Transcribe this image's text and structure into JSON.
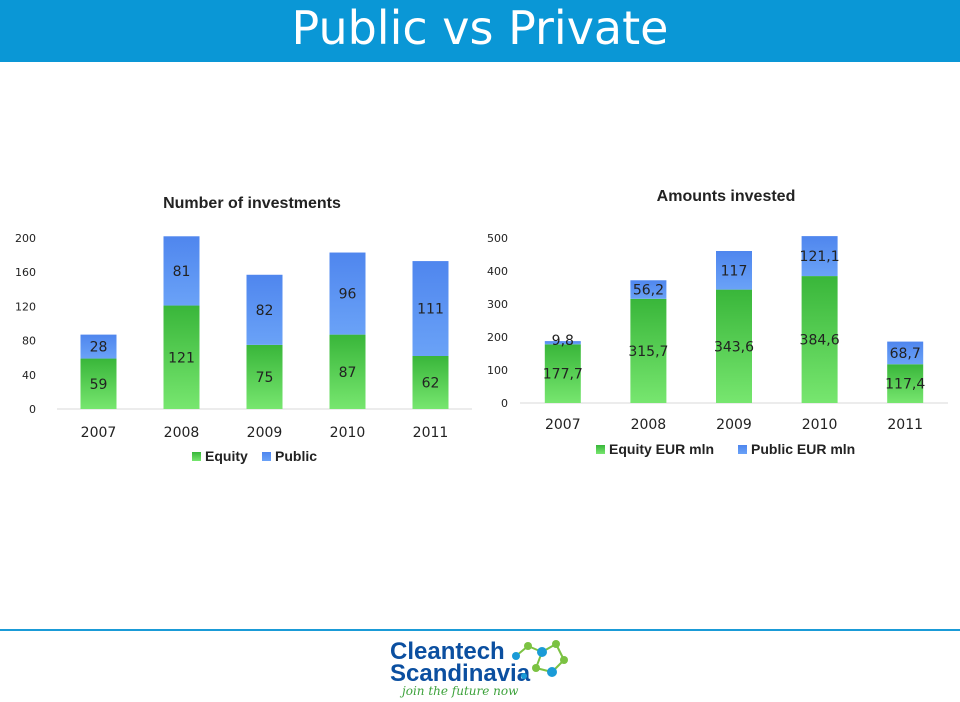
{
  "slide": {
    "title": "Public vs Private"
  },
  "colors": {
    "header": "#0a97d6",
    "equity": "#4fd04c",
    "public": "#5b92f2"
  },
  "chart_data": [
    {
      "type": "bar",
      "stacked": true,
      "title": "Number of investments",
      "categories": [
        "2007",
        "2008",
        "2009",
        "2010",
        "2011"
      ],
      "series": [
        {
          "name": "Equity",
          "values": [
            59,
            121,
            75,
            87,
            62
          ]
        },
        {
          "name": "Public",
          "values": [
            28,
            81,
            82,
            96,
            111
          ]
        }
      ],
      "y_ticks": [
        "0",
        "40",
        "80",
        "120",
        "160",
        "200"
      ],
      "ylim": [
        0,
        200
      ],
      "grid": false,
      "legend": "bottom"
    },
    {
      "type": "bar",
      "stacked": true,
      "title": "Amounts invested",
      "categories": [
        "2007",
        "2008",
        "2009",
        "2010",
        "2011"
      ],
      "series": [
        {
          "name": "Equity EUR mln",
          "values": [
            177.7,
            315.7,
            343.6,
            384.6,
            117.4
          ],
          "labels": [
            "177,7",
            "315,7",
            "343,6",
            "384,6",
            "117,4"
          ]
        },
        {
          "name": "Public  EUR mln",
          "values": [
            9.8,
            56.2,
            117,
            121.1,
            68.7
          ],
          "labels": [
            "9,8",
            "56,2",
            "117",
            "121,1",
            "68,7"
          ]
        }
      ],
      "y_ticks": [
        "0",
        "100",
        "200",
        "300",
        "400",
        "500"
      ],
      "ylim": [
        0,
        500
      ],
      "grid": false,
      "legend": "bottom"
    }
  ],
  "logo": {
    "line1": "Cleantech",
    "line2": "Scandinavia",
    "tagline": "join the future now"
  }
}
